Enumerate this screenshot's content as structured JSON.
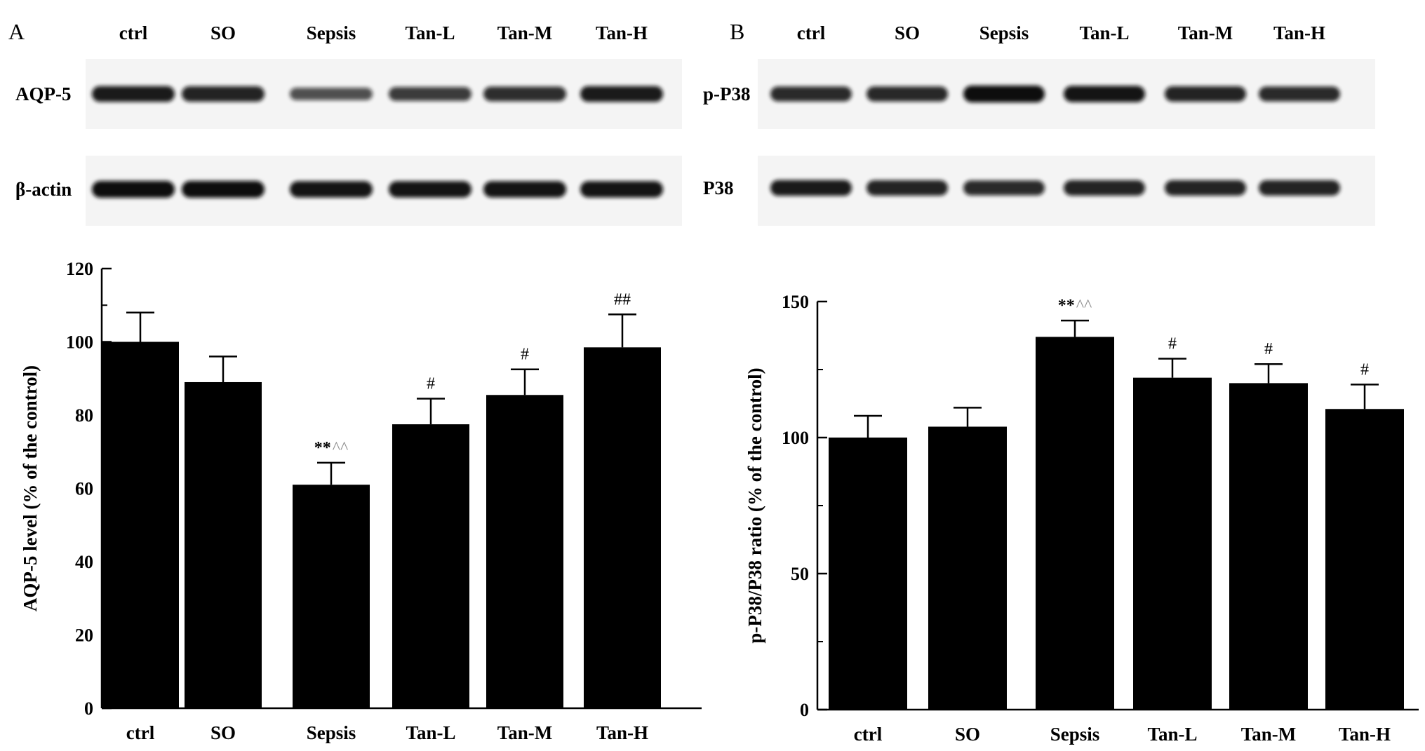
{
  "panels": [
    {
      "letter": "A",
      "lane_labels": [
        "ctrl",
        "SO",
        "Sepsis",
        "Tan-L",
        "Tan-M",
        "Tan-H"
      ],
      "blots": [
        {
          "label": "AQP-5",
          "intensities": [
            0.9,
            0.85,
            0.55,
            0.7,
            0.78,
            0.9
          ]
        },
        {
          "label": "β-actin",
          "intensities": [
            1.0,
            1.0,
            0.95,
            0.95,
            0.95,
            0.95
          ]
        }
      ]
    },
    {
      "letter": "B",
      "lane_labels": [
        "ctrl",
        "SO",
        "Sepsis",
        "Tan-L",
        "Tan-M",
        "Tan-H"
      ],
      "blots": [
        {
          "label": "p-P38",
          "intensities": [
            0.8,
            0.82,
            1.0,
            0.95,
            0.85,
            0.8
          ]
        },
        {
          "label": "P38",
          "intensities": [
            0.9,
            0.85,
            0.8,
            0.85,
            0.85,
            0.85
          ]
        }
      ]
    }
  ],
  "chart_data": [
    {
      "type": "bar",
      "title": "",
      "xlabel": "",
      "ylabel": "AQP-5 level (% of the control)",
      "categories": [
        "ctrl",
        "SO",
        "Sepsis",
        "Tan-L",
        "Tan-M",
        "Tan-H"
      ],
      "values": [
        100,
        89,
        61,
        77.5,
        85.5,
        98.5
      ],
      "errors": [
        8,
        7,
        6,
        7,
        7,
        9
      ],
      "annotations": [
        {
          "primary": "",
          "secondary": ""
        },
        {
          "primary": "",
          "secondary": ""
        },
        {
          "primary": "**",
          "secondary": "^^"
        },
        {
          "primary": "#",
          "secondary": ""
        },
        {
          "primary": "#",
          "secondary": ""
        },
        {
          "primary": "##",
          "secondary": ""
        }
      ],
      "ylim": [
        0,
        120
      ],
      "yticks": [
        "0",
        "20",
        "40",
        "60",
        "80",
        "100",
        "120"
      ],
      "grid": false,
      "bar_color": "#000000"
    },
    {
      "type": "bar",
      "title": "",
      "xlabel": "",
      "ylabel": "p-P38/P38 ratio (% of the control)",
      "categories": [
        "ctrl",
        "SO",
        "Sepsis",
        "Tan-L",
        "Tan-M",
        "Tan-H"
      ],
      "values": [
        100,
        104,
        137,
        122,
        120,
        110.5
      ],
      "errors": [
        8,
        7,
        6,
        7,
        7,
        9
      ],
      "annotations": [
        {
          "primary": "",
          "secondary": ""
        },
        {
          "primary": "",
          "secondary": ""
        },
        {
          "primary": "**",
          "secondary": "^^"
        },
        {
          "primary": "#",
          "secondary": ""
        },
        {
          "primary": "#",
          "secondary": ""
        },
        {
          "primary": "#",
          "secondary": ""
        }
      ],
      "ylim": [
        0,
        150
      ],
      "yticks": [
        "0",
        "50",
        "100",
        "150"
      ],
      "grid": false,
      "bar_color": "#000000"
    }
  ]
}
